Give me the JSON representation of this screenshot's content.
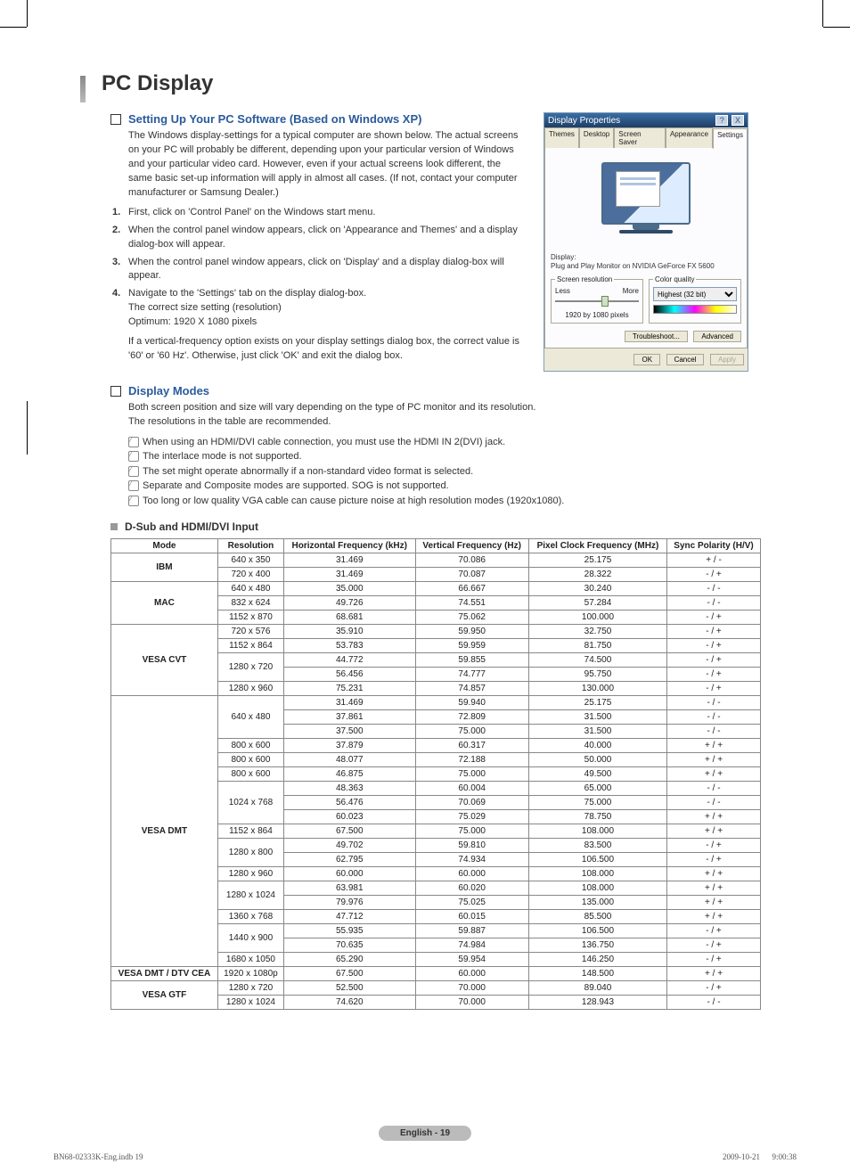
{
  "page": {
    "title": "PC Display",
    "footer_label": "English - 19",
    "footer_left": "BN68-02333K-Eng.indb   19",
    "footer_right": "2009-10-21      9:00:38"
  },
  "sec1": {
    "heading": "Setting Up Your PC Software (Based on Windows XP)",
    "intro": "The Windows display-settings for a typical computer are shown below. The actual screens on your PC will probably be different, depending upon your particular version of Windows and your particular video card. However, even if your actual screens look different, the same basic set-up information will apply in almost all cases. (If not, contact your computer manufacturer or Samsung Dealer.)",
    "steps": [
      "First, click on 'Control Panel' on the Windows start menu.",
      "When the control panel window appears, click on 'Appearance and Themes' and a display dialog-box will appear.",
      "When the control panel window appears, click on 'Display' and a display dialog-box will appear.",
      "Navigate to the 'Settings' tab on the display dialog-box."
    ],
    "step4_line2": "The correct size setting (resolution)",
    "step4_line3": "Optimum: 1920 X 1080 pixels",
    "step4_para2": "If a vertical-frequency option exists on your display settings dialog box, the correct value is '60' or '60 Hz'. Otherwise, just click 'OK' and exit the dialog box."
  },
  "sec2": {
    "heading": "Display Modes",
    "intro1": "Both screen position and size will vary depending on the type of PC monitor and its resolution.",
    "intro2": "The resolutions in the table are recommended.",
    "notes": [
      "When using an HDMI/DVI cable connection, you must use the HDMI IN 2(DVI) jack.",
      "The interlace mode is not supported.",
      "The set might operate abnormally if a non-standard video format is selected.",
      "Separate and Composite modes are supported. SOG is not supported.",
      "Too long or low quality VGA cable can cause picture noise at high resolution modes (1920x1080)."
    ]
  },
  "table": {
    "sub_heading": "D-Sub and HDMI/DVI Input",
    "headers": [
      "Mode",
      "Resolution",
      "Horizontal Frequency (kHz)",
      "Vertical Frequency (Hz)",
      "Pixel Clock Frequency (MHz)",
      "Sync Polarity (H/V)"
    ],
    "groups": [
      {
        "mode": "IBM",
        "rows": [
          [
            "640 x 350",
            "31.469",
            "70.086",
            "25.175",
            "+ / -"
          ],
          [
            "720 x 400",
            "31.469",
            "70.087",
            "28.322",
            "- / +"
          ]
        ]
      },
      {
        "mode": "MAC",
        "rows": [
          [
            "640 x 480",
            "35.000",
            "66.667",
            "30.240",
            "- / -"
          ],
          [
            "832 x 624",
            "49.726",
            "74.551",
            "57.284",
            "- / -"
          ],
          [
            "1152 x 870",
            "68.681",
            "75.062",
            "100.000",
            "- / +"
          ]
        ]
      },
      {
        "mode": "VESA CVT",
        "subgroups": [
          {
            "res": "720 x 576",
            "span": 1,
            "rows": [
              [
                "35.910",
                "59.950",
                "32.750",
                "- / +"
              ]
            ]
          },
          {
            "res": "1152 x 864",
            "span": 1,
            "rows": [
              [
                "53.783",
                "59.959",
                "81.750",
                "- / +"
              ]
            ]
          },
          {
            "res": "1280 x 720",
            "span": 2,
            "rows": [
              [
                "44.772",
                "59.855",
                "74.500",
                "- / +"
              ],
              [
                "56.456",
                "74.777",
                "95.750",
                "- / +"
              ]
            ]
          },
          {
            "res": "1280 x 960",
            "span": 1,
            "rows": [
              [
                "75.231",
                "74.857",
                "130.000",
                "- / +"
              ]
            ]
          }
        ]
      },
      {
        "mode": "VESA DMT",
        "subgroups": [
          {
            "res": "640 x 480",
            "span": 3,
            "rows": [
              [
                "31.469",
                "59.940",
                "25.175",
                "- / -"
              ],
              [
                "37.861",
                "72.809",
                "31.500",
                "- / -"
              ],
              [
                "37.500",
                "75.000",
                "31.500",
                "- / -"
              ]
            ]
          },
          {
            "res": "800 x 600",
            "span": 1,
            "rows": [
              [
                "37.879",
                "60.317",
                "40.000",
                "+ / +"
              ]
            ]
          },
          {
            "res": "800 x 600",
            "span": 1,
            "rows": [
              [
                "48.077",
                "72.188",
                "50.000",
                "+ / +"
              ]
            ]
          },
          {
            "res": "800 x 600",
            "span": 1,
            "rows": [
              [
                "46.875",
                "75.000",
                "49.500",
                "+ / +"
              ]
            ]
          },
          {
            "res": "1024 x 768",
            "span": 3,
            "rows": [
              [
                "48.363",
                "60.004",
                "65.000",
                "- / -"
              ],
              [
                "56.476",
                "70.069",
                "75.000",
                "- / -"
              ],
              [
                "60.023",
                "75.029",
                "78.750",
                "+ / +"
              ]
            ]
          },
          {
            "res": "1152 x 864",
            "span": 1,
            "rows": [
              [
                "67.500",
                "75.000",
                "108.000",
                "+ / +"
              ]
            ]
          },
          {
            "res": "1280 x 800",
            "span": 2,
            "rows": [
              [
                "49.702",
                "59.810",
                "83.500",
                "- / +"
              ],
              [
                "62.795",
                "74.934",
                "106.500",
                "- / +"
              ]
            ]
          },
          {
            "res": "1280 x 960",
            "span": 1,
            "rows": [
              [
                "60.000",
                "60.000",
                "108.000",
                "+ / +"
              ]
            ]
          },
          {
            "res": "1280 x 1024",
            "span": 2,
            "rows": [
              [
                "63.981",
                "60.020",
                "108.000",
                "+ / +"
              ],
              [
                "79.976",
                "75.025",
                "135.000",
                "+ / +"
              ]
            ]
          },
          {
            "res": "1360 x 768",
            "span": 1,
            "rows": [
              [
                "47.712",
                "60.015",
                "85.500",
                "+ / +"
              ]
            ]
          },
          {
            "res": "1440 x 900",
            "span": 2,
            "rows": [
              [
                "55.935",
                "59.887",
                "106.500",
                "- / +"
              ],
              [
                "70.635",
                "74.984",
                "136.750",
                "- / +"
              ]
            ]
          },
          {
            "res": "1680 x 1050",
            "span": 1,
            "rows": [
              [
                "65.290",
                "59.954",
                "146.250",
                "- / +"
              ]
            ]
          }
        ]
      },
      {
        "mode": "VESA DMT / DTV CEA",
        "rows": [
          [
            "1920 x 1080p",
            "67.500",
            "60.000",
            "148.500",
            "+ / +"
          ]
        ]
      },
      {
        "mode": "VESA GTF",
        "rows": [
          [
            "1280 x 720",
            "52.500",
            "70.000",
            "89.040",
            "- / +"
          ],
          [
            "1280 x 1024",
            "74.620",
            "70.000",
            "128.943",
            "- / -"
          ]
        ]
      }
    ]
  },
  "dialog": {
    "title": "Display Properties",
    "tabs": [
      "Themes",
      "Desktop",
      "Screen Saver",
      "Appearance",
      "Settings"
    ],
    "display_label": "Display:",
    "display_name": "Plug and Play Monitor on NVIDIA GeForce FX 5600",
    "screen_res_legend": "Screen resolution",
    "less": "Less",
    "more": "More",
    "res_value": "1920 by 1080 pixels",
    "color_legend": "Color quality",
    "color_value": "Highest (32 bit)",
    "troubleshoot": "Troubleshoot...",
    "advanced": "Advanced",
    "ok": "OK",
    "cancel": "Cancel",
    "apply": "Apply"
  }
}
